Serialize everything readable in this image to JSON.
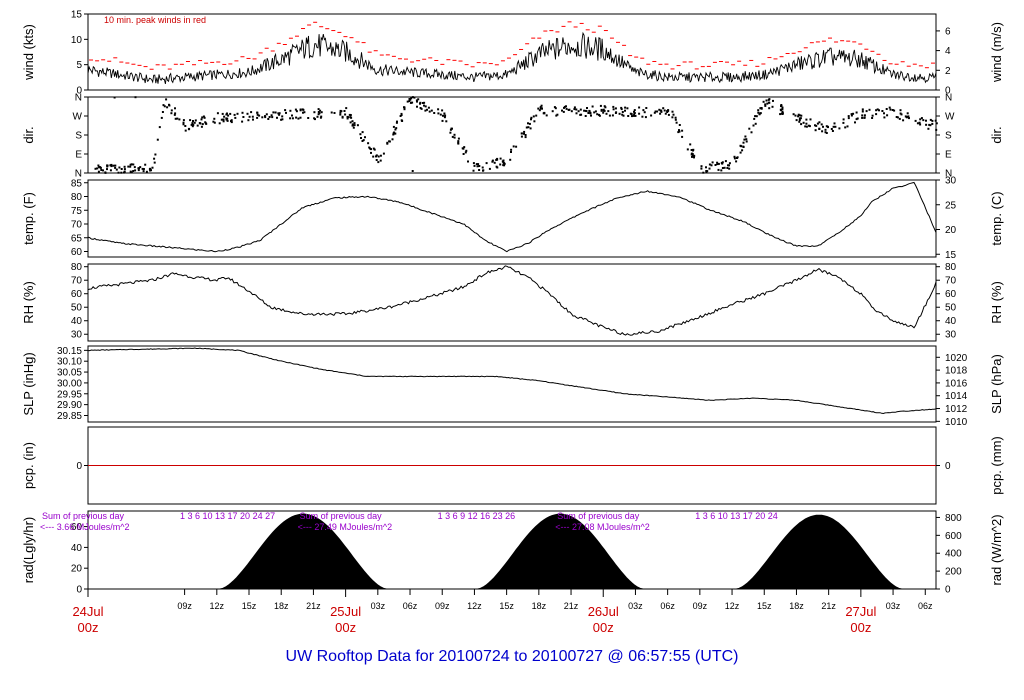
{
  "footer": {
    "title": "UW Rooftop Data for 20100724  to  20100727 @ 06:57:55  (UTC)"
  },
  "colors": {
    "line": "#000000",
    "peak": "#ff0000",
    "precip": "#cc0000",
    "note": "#cc0000",
    "radtext": "#9900cc",
    "date": "#cc0000",
    "footer": "#0000cc"
  },
  "chart_data": {
    "type": "line",
    "x_axis": {
      "unit": "hours since 2010-07-24 00z",
      "range": [
        0,
        79
      ],
      "hour_ticks": [
        {
          "h": 9,
          "label": "09z"
        },
        {
          "h": 12,
          "label": "12z"
        },
        {
          "h": 15,
          "label": "15z"
        },
        {
          "h": 18,
          "label": "18z"
        },
        {
          "h": 21,
          "label": "21z"
        },
        {
          "h": 27,
          "label": "03z"
        },
        {
          "h": 30,
          "label": "06z"
        },
        {
          "h": 33,
          "label": "09z"
        },
        {
          "h": 36,
          "label": "12z"
        },
        {
          "h": 39,
          "label": "15z"
        },
        {
          "h": 42,
          "label": "18z"
        },
        {
          "h": 45,
          "label": "21z"
        },
        {
          "h": 51,
          "label": "03z"
        },
        {
          "h": 54,
          "label": "06z"
        },
        {
          "h": 57,
          "label": "09z"
        },
        {
          "h": 60,
          "label": "12z"
        },
        {
          "h": 63,
          "label": "15z"
        },
        {
          "h": 66,
          "label": "18z"
        },
        {
          "h": 69,
          "label": "21z"
        },
        {
          "h": 75,
          "label": "03z"
        },
        {
          "h": 78,
          "label": "06z"
        }
      ],
      "day_labels": [
        {
          "h": 0,
          "date": "24Jul",
          "time": "00z"
        },
        {
          "h": 24,
          "date": "25Jul",
          "time": "00z"
        },
        {
          "h": 48,
          "date": "26Jul",
          "time": "00z"
        },
        {
          "h": 72,
          "date": "27Jul",
          "time": "00z"
        }
      ]
    },
    "panels": [
      {
        "id": "wind",
        "left_label": "wind (kts)",
        "right_label": "wind (m/s)",
        "ylim": [
          0,
          15
        ],
        "left_ticks": [
          0,
          5,
          10,
          15
        ],
        "right_ticks": [
          {
            "v": 0,
            "label": "0"
          },
          {
            "v": 3.888,
            "label": "2"
          },
          {
            "v": 7.776,
            "label": "4"
          },
          {
            "v": 11.664,
            "label": "6"
          }
        ],
        "note": "10 min. peak winds in red",
        "x": [
          0,
          3,
          6,
          9,
          12,
          15,
          18,
          21,
          24,
          27,
          30,
          33,
          36,
          39,
          42,
          45,
          48,
          51,
          54,
          57,
          60,
          63,
          66,
          69,
          72,
          75,
          78,
          79
        ],
        "y": [
          4,
          3,
          2,
          2.5,
          3,
          3.5,
          6,
          9,
          7.5,
          4,
          3.5,
          3,
          2.5,
          3,
          7,
          9,
          8,
          3.5,
          2.5,
          2.5,
          2.5,
          3,
          5,
          6.5,
          6,
          3,
          2.5,
          2.5
        ]
      },
      {
        "id": "dir",
        "left_label": "dir.",
        "right_label": "dir.",
        "ylim": [
          0,
          360
        ],
        "left_ticks": [
          {
            "v": 0,
            "label": "N"
          },
          {
            "v": 90,
            "label": "E"
          },
          {
            "v": 180,
            "label": "S"
          },
          {
            "v": 270,
            "label": "W"
          },
          {
            "v": 360,
            "label": "N"
          }
        ],
        "right_ticks": [
          {
            "v": 0,
            "label": "N"
          },
          {
            "v": 90,
            "label": "E"
          },
          {
            "v": 180,
            "label": "S"
          },
          {
            "v": 270,
            "label": "W"
          },
          {
            "v": 360,
            "label": "N"
          }
        ],
        "x": [
          0,
          3,
          6,
          7,
          9,
          12,
          15,
          18,
          21,
          24,
          27,
          30,
          33,
          36,
          39,
          42,
          45,
          48,
          51,
          54,
          57,
          60,
          63,
          66,
          69,
          72,
          75,
          78,
          79
        ],
        "y": [
          15,
          20,
          25,
          340,
          225,
          260,
          270,
          275,
          280,
          285,
          60,
          350,
          270,
          20,
          60,
          300,
          290,
          295,
          285,
          300,
          20,
          40,
          340,
          260,
          200,
          280,
          290,
          230,
          225
        ]
      },
      {
        "id": "temp",
        "left_label": "temp. (F)",
        "right_label": "temp. (C)",
        "ylim": [
          58,
          86
        ],
        "left_ticks": [
          60,
          65,
          70,
          75,
          80,
          85
        ],
        "right_ticks": [
          {
            "v": 59,
            "label": "15"
          },
          {
            "v": 68,
            "label": "20"
          },
          {
            "v": 77,
            "label": "25"
          },
          {
            "v": 86,
            "label": "30"
          }
        ],
        "x": [
          0,
          3,
          6,
          9,
          12,
          14,
          16,
          18,
          20,
          23,
          26,
          29,
          32,
          35,
          37,
          39,
          41,
          43,
          46,
          49,
          52,
          55,
          58,
          61,
          62,
          64,
          66,
          68,
          70,
          72,
          73,
          75,
          77,
          79
        ],
        "y": [
          65,
          63,
          62,
          61,
          60,
          61.5,
          64,
          70,
          76,
          79.5,
          80,
          78,
          74,
          70,
          64,
          60,
          63,
          68,
          74,
          79,
          82,
          80,
          75,
          71,
          69,
          65,
          62,
          62,
          67,
          73,
          78,
          83,
          85,
          67
        ]
      },
      {
        "id": "rh",
        "left_label": "RH (%)",
        "right_label": "RH (%)",
        "ylim": [
          25,
          82
        ],
        "left_ticks": [
          30,
          40,
          50,
          60,
          70,
          80
        ],
        "right_ticks": [
          {
            "v": 30,
            "label": "30"
          },
          {
            "v": 40,
            "label": "40"
          },
          {
            "v": 50,
            "label": "50"
          },
          {
            "v": 60,
            "label": "60"
          },
          {
            "v": 70,
            "label": "70"
          },
          {
            "v": 80,
            "label": "80"
          }
        ],
        "x": [
          0,
          3,
          6,
          8,
          10,
          12,
          13,
          15,
          17,
          20,
          24,
          28,
          32,
          35,
          37,
          39,
          41,
          43,
          45,
          48,
          50,
          53,
          56,
          60,
          63,
          66,
          68,
          70,
          72,
          73,
          75,
          77,
          79
        ],
        "y": [
          64,
          67,
          70,
          75,
          72,
          70,
          72,
          62,
          50,
          45,
          45,
          50,
          58,
          65,
          75,
          80,
          72,
          60,
          45,
          35,
          30,
          32,
          40,
          52,
          60,
          70,
          78,
          72,
          60,
          50,
          40,
          35,
          68
        ]
      },
      {
        "id": "slp",
        "left_label": "SLP (inHg)",
        "right_label": "SLP (hPa)",
        "ylim": [
          29.82,
          30.17
        ],
        "left_ticks": [
          29.85,
          29.9,
          29.95,
          30.0,
          30.05,
          30.1,
          30.15
        ],
        "right_ticks": [
          {
            "v": 29.823,
            "label": "1010"
          },
          {
            "v": 29.882,
            "label": "1012"
          },
          {
            "v": 29.941,
            "label": "1014"
          },
          {
            "v": 30.0,
            "label": "1016"
          },
          {
            "v": 30.059,
            "label": "1018"
          },
          {
            "v": 30.118,
            "label": "1020"
          }
        ],
        "x": [
          0,
          5,
          10,
          14,
          18,
          22,
          26,
          30,
          34,
          38,
          42,
          46,
          50,
          54,
          58,
          62,
          66,
          70,
          74,
          76,
          79
        ],
        "y": [
          30.15,
          30.155,
          30.16,
          30.15,
          30.1,
          30.06,
          30.03,
          30.03,
          30.03,
          30.03,
          30.01,
          29.98,
          29.95,
          29.935,
          29.92,
          29.93,
          29.92,
          29.89,
          29.86,
          29.87,
          29.88
        ]
      },
      {
        "id": "pcp",
        "left_label": "pcp. (in)",
        "right_label": "pcp. (mm)",
        "ylim": [
          -1,
          1
        ],
        "left_ticks": [
          0
        ],
        "right_ticks": [
          {
            "v": 0,
            "label": "0"
          }
        ],
        "x": [
          0,
          79
        ],
        "y": [
          0,
          0
        ]
      },
      {
        "id": "rad",
        "left_label": "rad(Lgly/hr)",
        "right_label": "rad (W/m^2)",
        "ylim": [
          0,
          75
        ],
        "left_ticks": [
          0,
          20,
          40,
          60
        ],
        "right_ticks": [
          {
            "v": 0,
            "label": "0"
          },
          {
            "v": 17.2,
            "label": "200"
          },
          {
            "v": 34.4,
            "label": "400"
          },
          {
            "v": 51.6,
            "label": "600"
          },
          {
            "v": 68.8,
            "label": "800"
          }
        ],
        "days": [
          {
            "rise": 12.3,
            "peak": 20.0,
            "set": 27.8,
            "max": 72
          },
          {
            "rise": 36.3,
            "peak": 44.0,
            "set": 51.7,
            "max": 72
          },
          {
            "rise": 60.4,
            "peak": 68.0,
            "set": 75.8,
            "max": 71
          }
        ],
        "annotations": [
          {
            "h": 0,
            "line1": "Sum of previous day",
            "line2": "<--- 3.66 MJoules/m^2",
            "hours": "1  3  6  10  13  17  20  24  27"
          },
          {
            "h": 24,
            "line1": "Sum of previous day",
            "line2": "<--- 27.49 MJoules/m^2",
            "hours": "1  3  6  9  12  16  23  26"
          },
          {
            "h": 48,
            "line1": "Sum of previous day",
            "line2": "<--- 27.08 MJoules/m^2",
            "hours": "1  3  6  10  13  17  20  24"
          }
        ]
      }
    ]
  }
}
